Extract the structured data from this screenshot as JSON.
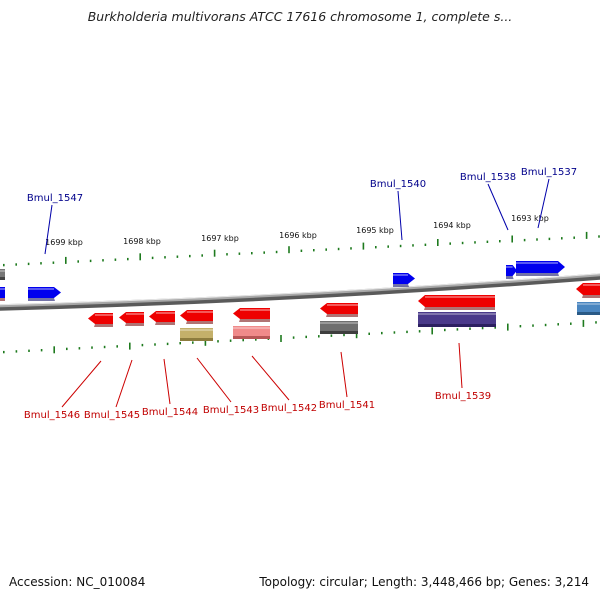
{
  "header": {
    "title": "Burkholderia multivorans ATCC 17616 chromosome 1, complete s..."
  },
  "footer": {
    "accession": "Accession: NC_010084",
    "summary": "Topology: circular; Length: 3,448,466 bp; Genes: 3,214"
  },
  "colors": {
    "forward_gene": "#0000ee",
    "reverse_gene": "#ee0000",
    "backbone": "#8a8a8a",
    "tick": "#1e7a1e",
    "forward_label": "#00008b",
    "reverse_label": "#c00000"
  },
  "scale_ticks": [
    "1699 kbp",
    "1698 kbp",
    "1697 kbp",
    "1696 kbp",
    "1695 kbp",
    "1694 kbp",
    "1693 kbp"
  ],
  "forward_genes": [
    {
      "label": "Bmul_1547"
    },
    {
      "label": "Bmul_1540"
    },
    {
      "label": "Bmul_1538"
    },
    {
      "label": "Bmul_1537"
    }
  ],
  "reverse_genes": [
    {
      "label": "Bmul_1546"
    },
    {
      "label": "Bmul_1545"
    },
    {
      "label": "Bmul_1544"
    },
    {
      "label": "Bmul_1543"
    },
    {
      "label": "Bmul_1542"
    },
    {
      "label": "Bmul_1541"
    },
    {
      "label": "Bmul_1539"
    }
  ]
}
